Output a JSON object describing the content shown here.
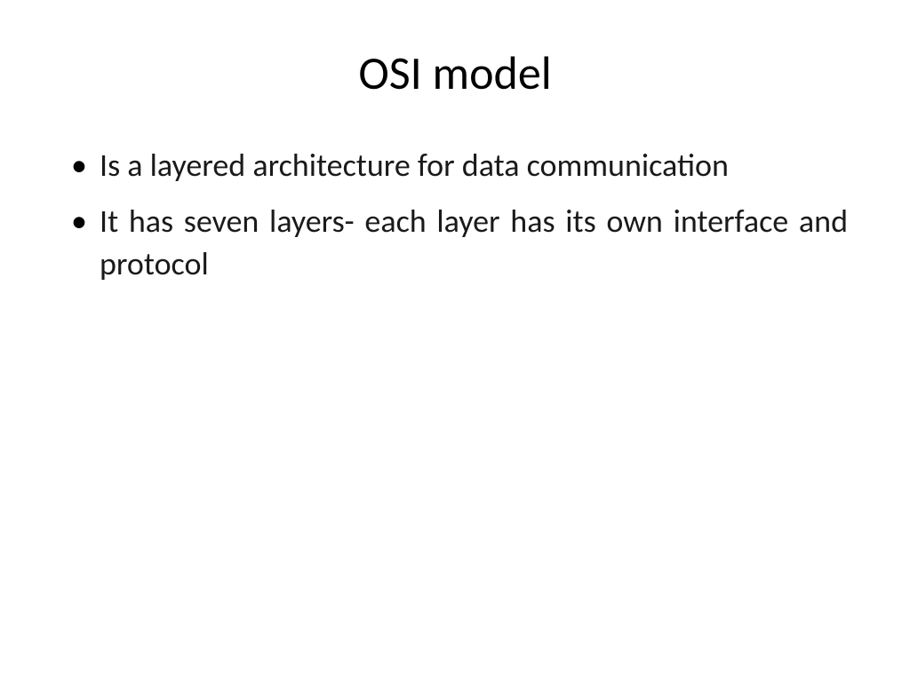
{
  "slide": {
    "title": "OSI model",
    "bullets": [
      "Is a layered architecture for data communication",
      "It has seven layers- each layer has its own interface and protocol"
    ],
    "styling": {
      "background_color": "#ffffff",
      "text_color": "#000000",
      "title_fontsize": 52,
      "title_fontweight": 400,
      "bullet_fontsize": 36,
      "bullet_text_align": "justify",
      "font_family": "Calibri",
      "slide_width": 1024,
      "slide_height": 768
    }
  }
}
